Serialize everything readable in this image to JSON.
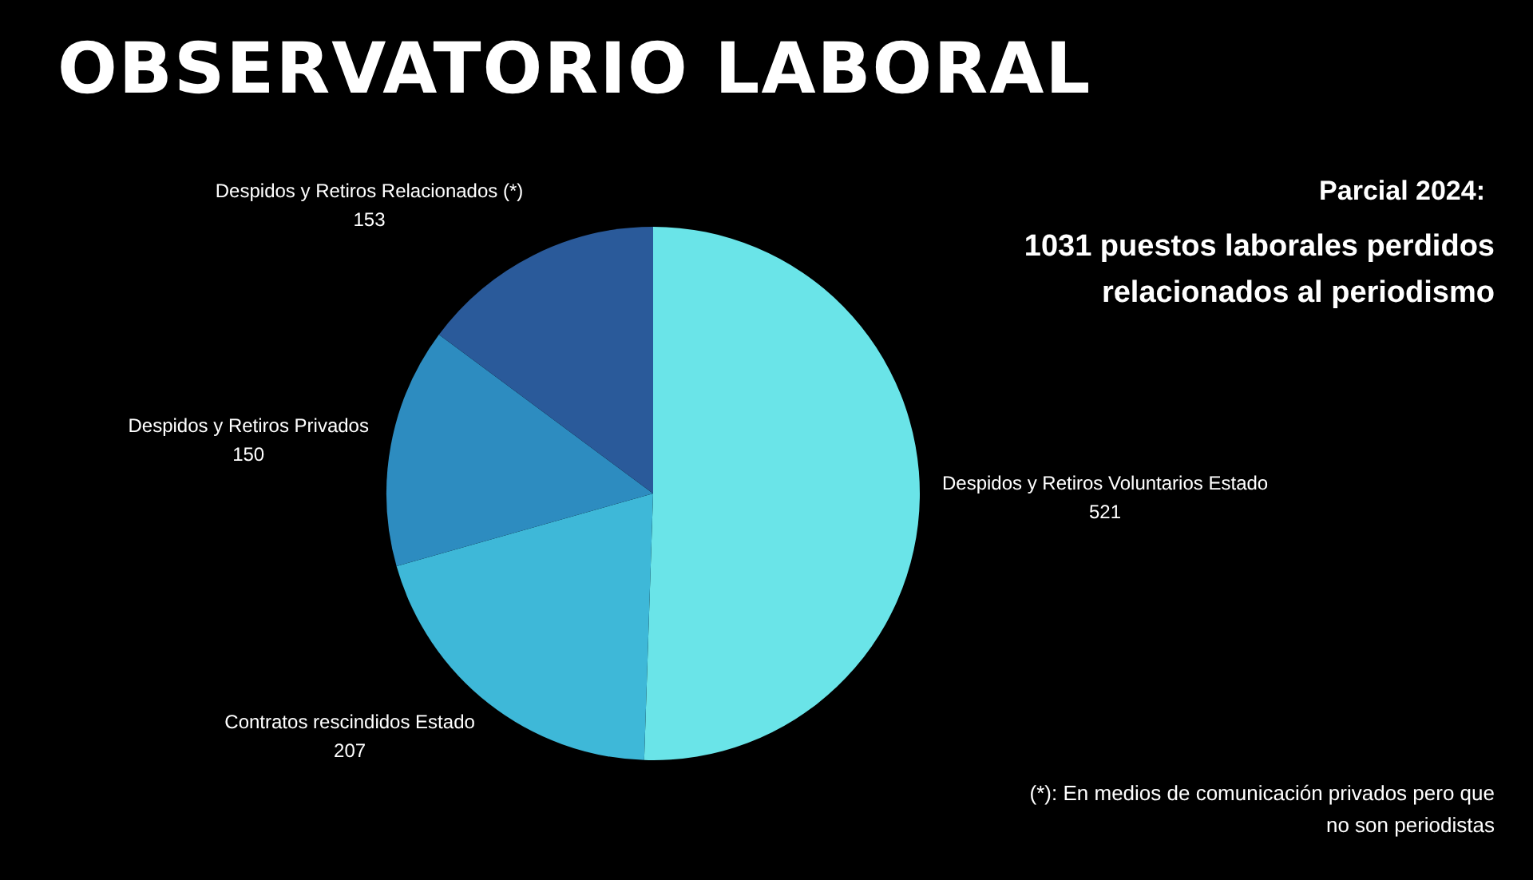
{
  "chart_data": {
    "type": "pie",
    "title": "OBSERVATORIO LABORAL",
    "subtitle": "Parcial 2024:",
    "categories": [
      "Despidos y Retiros Voluntarios Estado",
      "Contratos rescindidos Estado",
      "Despidos y Retiros Privados",
      "Despidos y Retiros Relacionados (*)"
    ],
    "values": [
      521,
      207,
      150,
      153
    ],
    "colors": [
      "#6ae4e8",
      "#3eb8d8",
      "#2d8cc0",
      "#2a5a9a"
    ],
    "data_labels": true,
    "legend": false,
    "annotations": [
      "1031 puestos laborales perdidos relacionados al periodismo",
      "(*): En medios de comunicación privados pero que no son periodistas"
    ]
  }
}
